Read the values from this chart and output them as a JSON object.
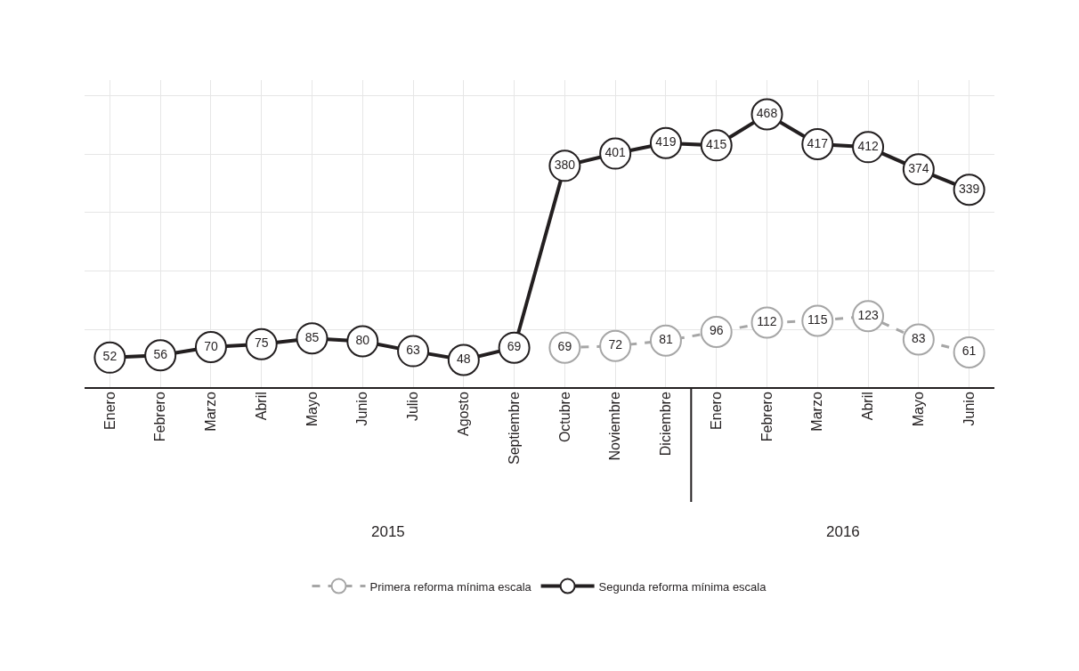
{
  "chart_data": {
    "type": "line",
    "categories": [
      "Enero",
      "Febrero",
      "Marzo",
      "Abril",
      "Mayo",
      "Junio",
      "Julio",
      "Agosto",
      "Septiembre",
      "Octubre",
      "Noviembre",
      "Diciembre",
      "Enero",
      "Febrero",
      "Marzo",
      "Abril",
      "Mayo",
      "Junio"
    ],
    "series": [
      {
        "name": "Primera reforma mínima escala",
        "color": "#a6a6a6",
        "line_style": "dashed",
        "values": [
          null,
          null,
          null,
          null,
          null,
          null,
          null,
          null,
          null,
          69,
          72,
          81,
          96,
          112,
          115,
          123,
          83,
          61
        ]
      },
      {
        "name": "Segunda reforma mínima escala",
        "color": "#231f20",
        "line_style": "solid",
        "values": [
          52,
          56,
          70,
          75,
          85,
          80,
          63,
          48,
          69,
          380,
          401,
          419,
          415,
          468,
          417,
          412,
          374,
          339
        ]
      }
    ],
    "annotations": [
      "2015",
      "2016"
    ],
    "data_labels": true,
    "marker": "circle",
    "grid": true,
    "legend": "bottom",
    "tick_labels": "x"
  }
}
